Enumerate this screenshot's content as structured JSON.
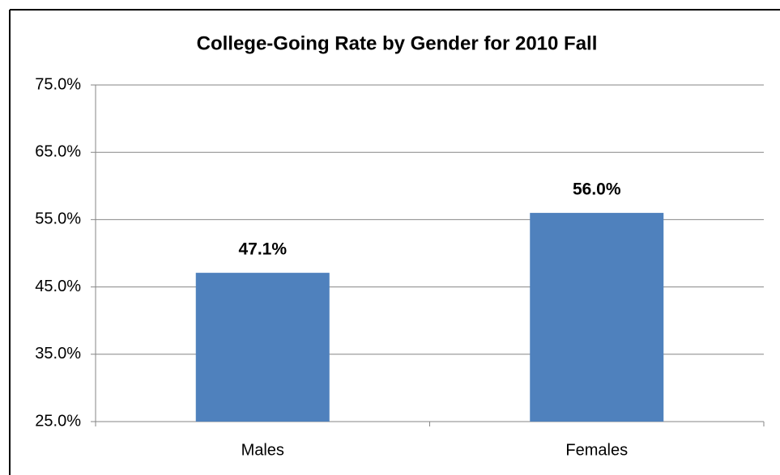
{
  "chart_data": {
    "type": "bar",
    "title": "College-Going Rate by Gender for 2010 Fall",
    "categories": [
      "Males",
      "Females"
    ],
    "values": [
      47.1,
      56.0
    ],
    "value_labels": [
      "47.1%",
      "56.0%"
    ],
    "color": "#4f81bd",
    "ylim": [
      25,
      75
    ],
    "yticks": [
      {
        "value": 25,
        "label": "25.0%"
      },
      {
        "value": 35,
        "label": "35.0%"
      },
      {
        "value": 45,
        "label": "45.0%"
      },
      {
        "value": 55,
        "label": "55.0%"
      },
      {
        "value": 65,
        "label": "65.0%"
      },
      {
        "value": 75,
        "label": "75.0%"
      }
    ],
    "grid": true
  }
}
